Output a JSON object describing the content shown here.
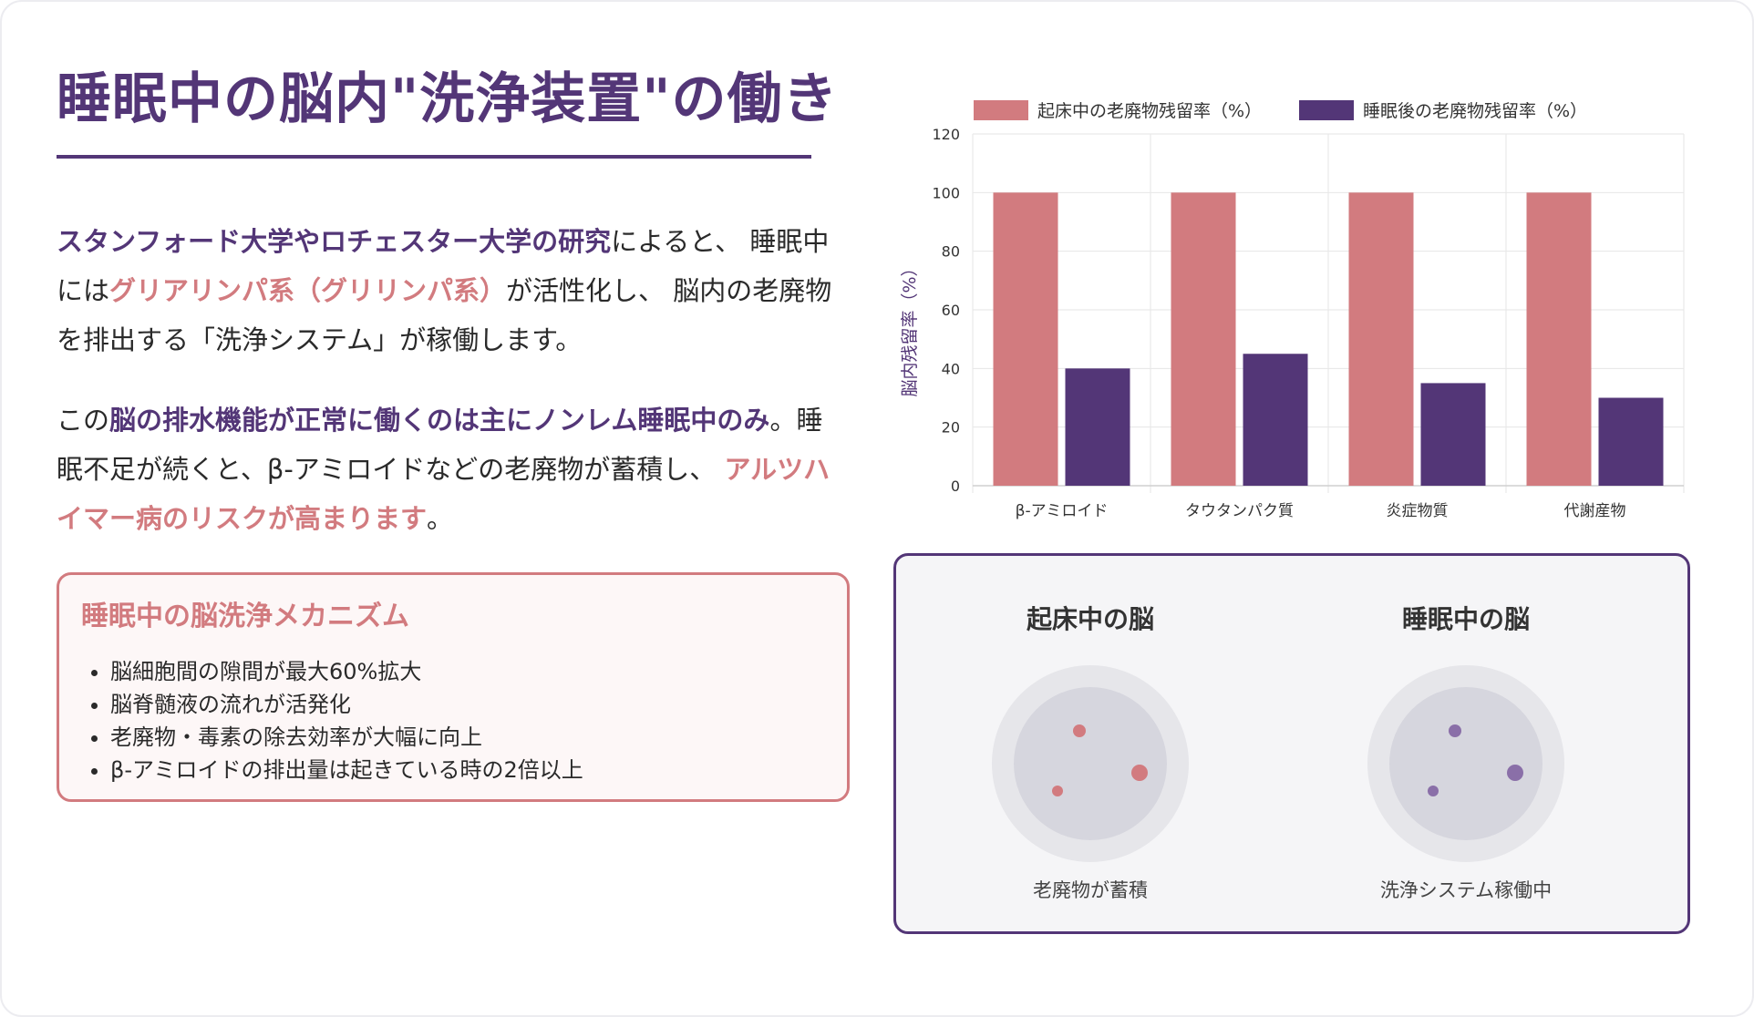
{
  "title": "睡眠中の脳内\"洗浄装置\"の働き",
  "para1": {
    "seg1": "スタンフォード大学やロチェスター大学の研究",
    "seg2": "によると、 睡眠中には",
    "seg3": "グリアリンパ系（グリリンパ系）",
    "seg4": "が活性化し、 脳内の老廃物を排出する「洗浄システム」が稼働します。"
  },
  "para2": {
    "seg1": "この",
    "seg2": "脳の排水機能が正常に働くのは主にノンレム睡眠中のみ",
    "seg3": "。睡眠不足が続くと、β-アミロイドなどの老廃物が蓄積し、 ",
    "seg4": "アルツハイマー病のリスクが高まります",
    "seg5": "。"
  },
  "mechanism": {
    "title": "睡眠中の脳洗浄メカニズム",
    "items": [
      "脳細胞間の隙間が最大60%拡大",
      "脳脊髄液の流れが活発化",
      "老廃物・毒素の除去効率が大幅に向上",
      "β-アミロイドの排出量は起きている時の2倍以上"
    ]
  },
  "colors": {
    "accent_purple": "#533677",
    "accent_pink": "#d27b7f"
  },
  "chart_data": {
    "type": "bar",
    "categories": [
      "β-アミロイド",
      "タウタンパク質",
      "炎症物質",
      "代謝産物"
    ],
    "series": [
      {
        "name": "起床中の老廃物残留率（%）",
        "color": "#d27b7f",
        "values": [
          100,
          100,
          100,
          100
        ]
      },
      {
        "name": "睡眠後の老廃物残留率（%）",
        "color": "#533677",
        "values": [
          40,
          45,
          35,
          30
        ]
      }
    ],
    "xlabel": "",
    "ylabel": "脳内残留率（%）",
    "ylim": [
      0,
      120
    ],
    "yticks": [
      0,
      20,
      40,
      60,
      80,
      100,
      120
    ],
    "grid": true,
    "legend": "top"
  },
  "comparison": {
    "awake": {
      "title": "起床中の脳",
      "caption": "老廃物が蓄積",
      "dot_color": "#d27b7f"
    },
    "sleep": {
      "title": "睡眠中の脳",
      "caption": "洗浄システム稼働中",
      "dot_color": "#8a6fa8"
    }
  }
}
